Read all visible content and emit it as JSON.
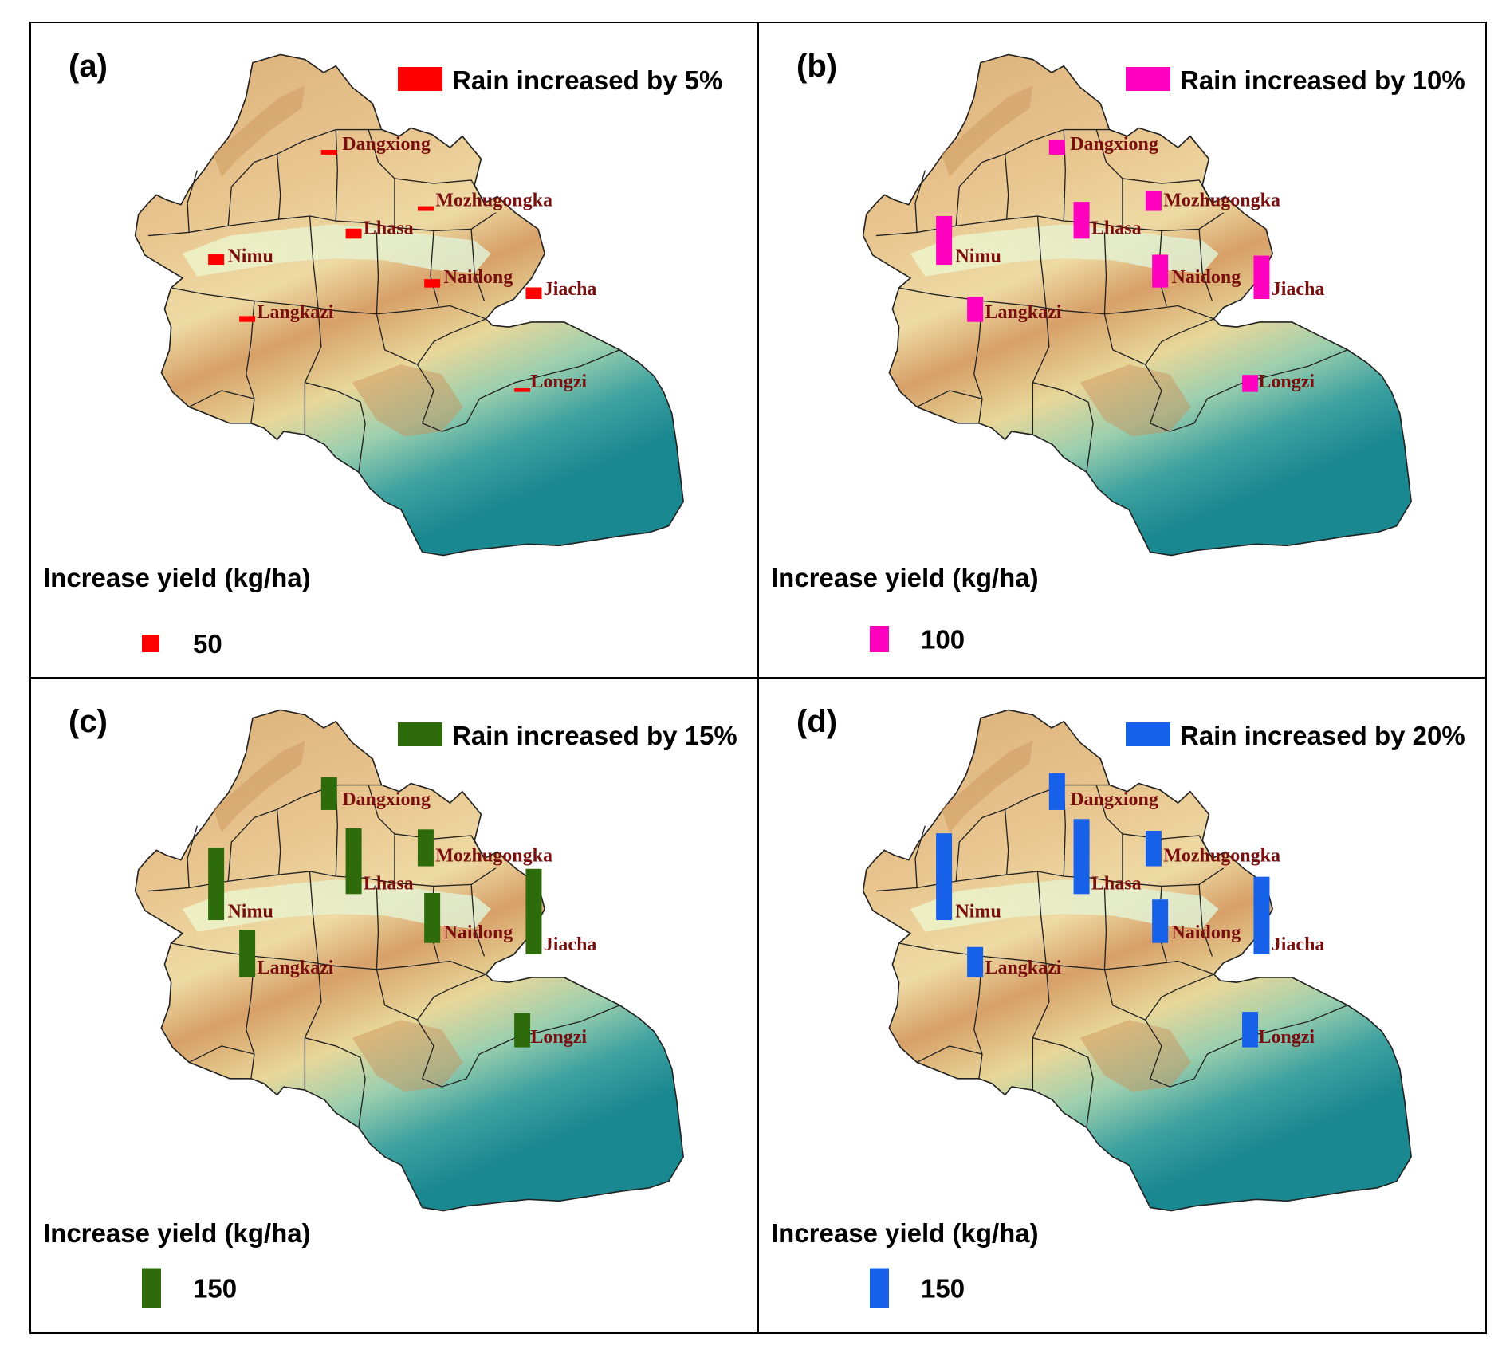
{
  "figure": {
    "panels": [
      {
        "letter": "(a)",
        "legend_title": "Rain increased by 5%",
        "color": "#ff0000",
        "scale_title": "Increase yield (kg/ha)",
        "scale_value": "50",
        "bars": [
          {
            "town": "Dangxiong",
            "yield": 18
          },
          {
            "town": "Mozhugongka",
            "yield": 18
          },
          {
            "town": "Lhasa",
            "yield": 38
          },
          {
            "town": "Nimu",
            "yield": 40
          },
          {
            "town": "Naidong",
            "yield": 32
          },
          {
            "town": "Jiacha",
            "yield": 44
          },
          {
            "town": "Langkazi",
            "yield": 22
          },
          {
            "town": "Longzi",
            "yield": 14
          }
        ]
      },
      {
        "letter": "(b)",
        "legend_title": "Rain increased by 10%",
        "color": "#ff00bf",
        "scale_title": "Increase yield (kg/ha)",
        "scale_value": "100",
        "bars": [
          {
            "town": "Dangxiong",
            "yield": 55
          },
          {
            "town": "Mozhugongka",
            "yield": 75
          },
          {
            "town": "Lhasa",
            "yield": 140
          },
          {
            "town": "Nimu",
            "yield": 185
          },
          {
            "town": "Naidong",
            "yield": 125
          },
          {
            "town": "Jiacha",
            "yield": 165
          },
          {
            "town": "Langkazi",
            "yield": 95
          },
          {
            "town": "Longzi",
            "yield": 65
          }
        ]
      },
      {
        "letter": "(c)",
        "legend_title": "Rain increased by 15%",
        "color": "#2e6b0a",
        "scale_title": "Increase yield (kg/ha)",
        "scale_value": "150",
        "bars": [
          {
            "town": "Dangxiong",
            "yield": 125
          },
          {
            "town": "Mozhugongka",
            "yield": 140
          },
          {
            "town": "Lhasa",
            "yield": 250
          },
          {
            "town": "Nimu",
            "yield": 275
          },
          {
            "town": "Naidong",
            "yield": 190
          },
          {
            "town": "Jiacha",
            "yield": 325
          },
          {
            "town": "Langkazi",
            "yield": 180
          },
          {
            "town": "Longzi",
            "yield": 130
          }
        ]
      },
      {
        "letter": "(d)",
        "legend_title": "Rain increased by 20%",
        "color": "#1760e8",
        "scale_title": "Increase yield (kg/ha)",
        "scale_value": "150",
        "bars": [
          {
            "town": "Dangxiong",
            "yield": 140
          },
          {
            "town": "Mozhugongka",
            "yield": 135
          },
          {
            "town": "Lhasa",
            "yield": 285
          },
          {
            "town": "Nimu",
            "yield": 330
          },
          {
            "town": "Naidong",
            "yield": 165
          },
          {
            "town": "Jiacha",
            "yield": 295
          },
          {
            "town": "Langkazi",
            "yield": 115
          },
          {
            "town": "Longzi",
            "yield": 135
          }
        ]
      }
    ]
  }
}
